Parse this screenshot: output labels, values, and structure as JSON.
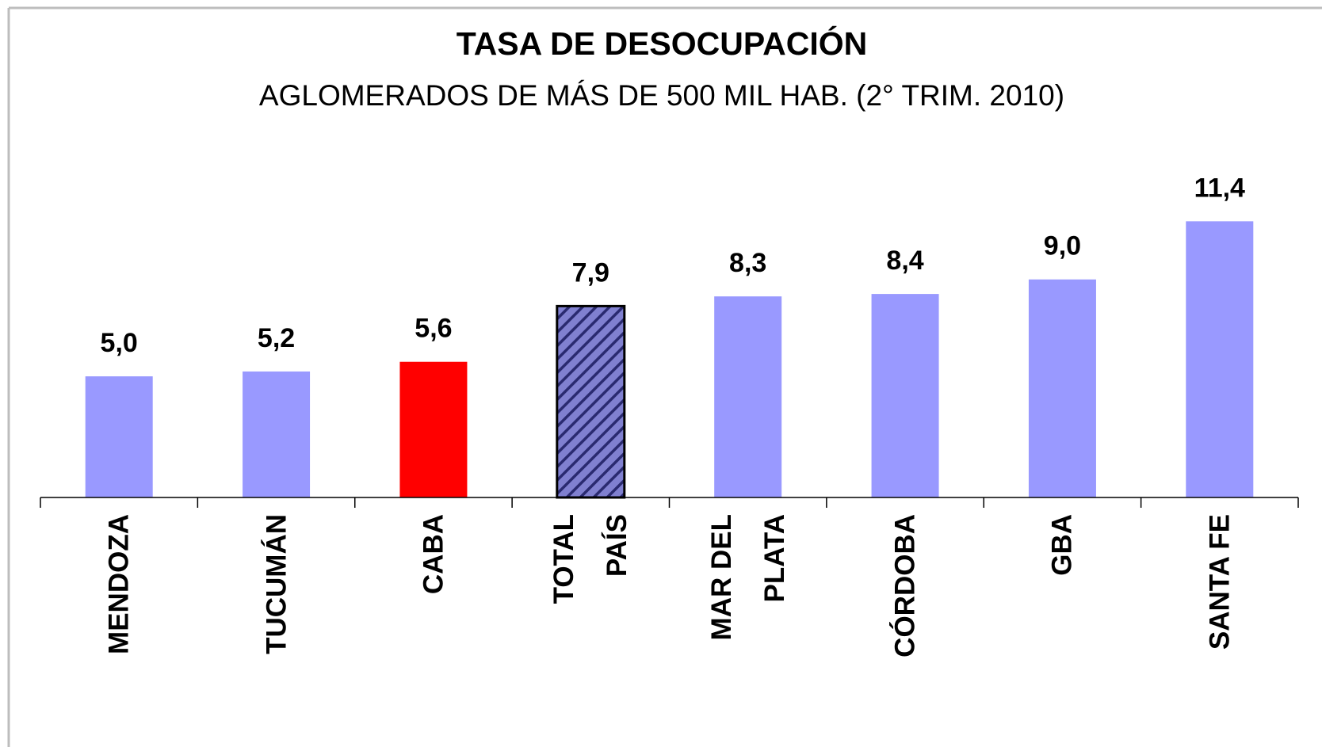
{
  "chart_data": {
    "type": "bar",
    "title": "TASA DE DESOCUPACIÓN",
    "subtitle": "AGLOMERADOS DE MÁS DE 500 MIL HAB. (2° TRIM. 2010)",
    "categories": [
      "MENDOZA",
      "TUCUMÁN",
      "CABA",
      "TOTAL\nPAÍS",
      "MAR DEL\nPLATA",
      "CÓRDOBA",
      "GBA",
      "SANTA FE"
    ],
    "values": [
      5.0,
      5.2,
      5.6,
      7.9,
      8.3,
      8.4,
      9.0,
      11.4
    ],
    "value_labels": [
      "5,0",
      "5,2",
      "5,6",
      "7,9",
      "8,3",
      "8,4",
      "9,0",
      "11,4"
    ],
    "colors": [
      "#9999ff",
      "#9999ff",
      "#ff0000",
      "#9999ff",
      "#9999ff",
      "#9999ff",
      "#9999ff",
      "#9999ff"
    ],
    "hatched": [
      false,
      false,
      false,
      true,
      false,
      false,
      false,
      false
    ],
    "ylim": [
      0,
      12
    ]
  }
}
